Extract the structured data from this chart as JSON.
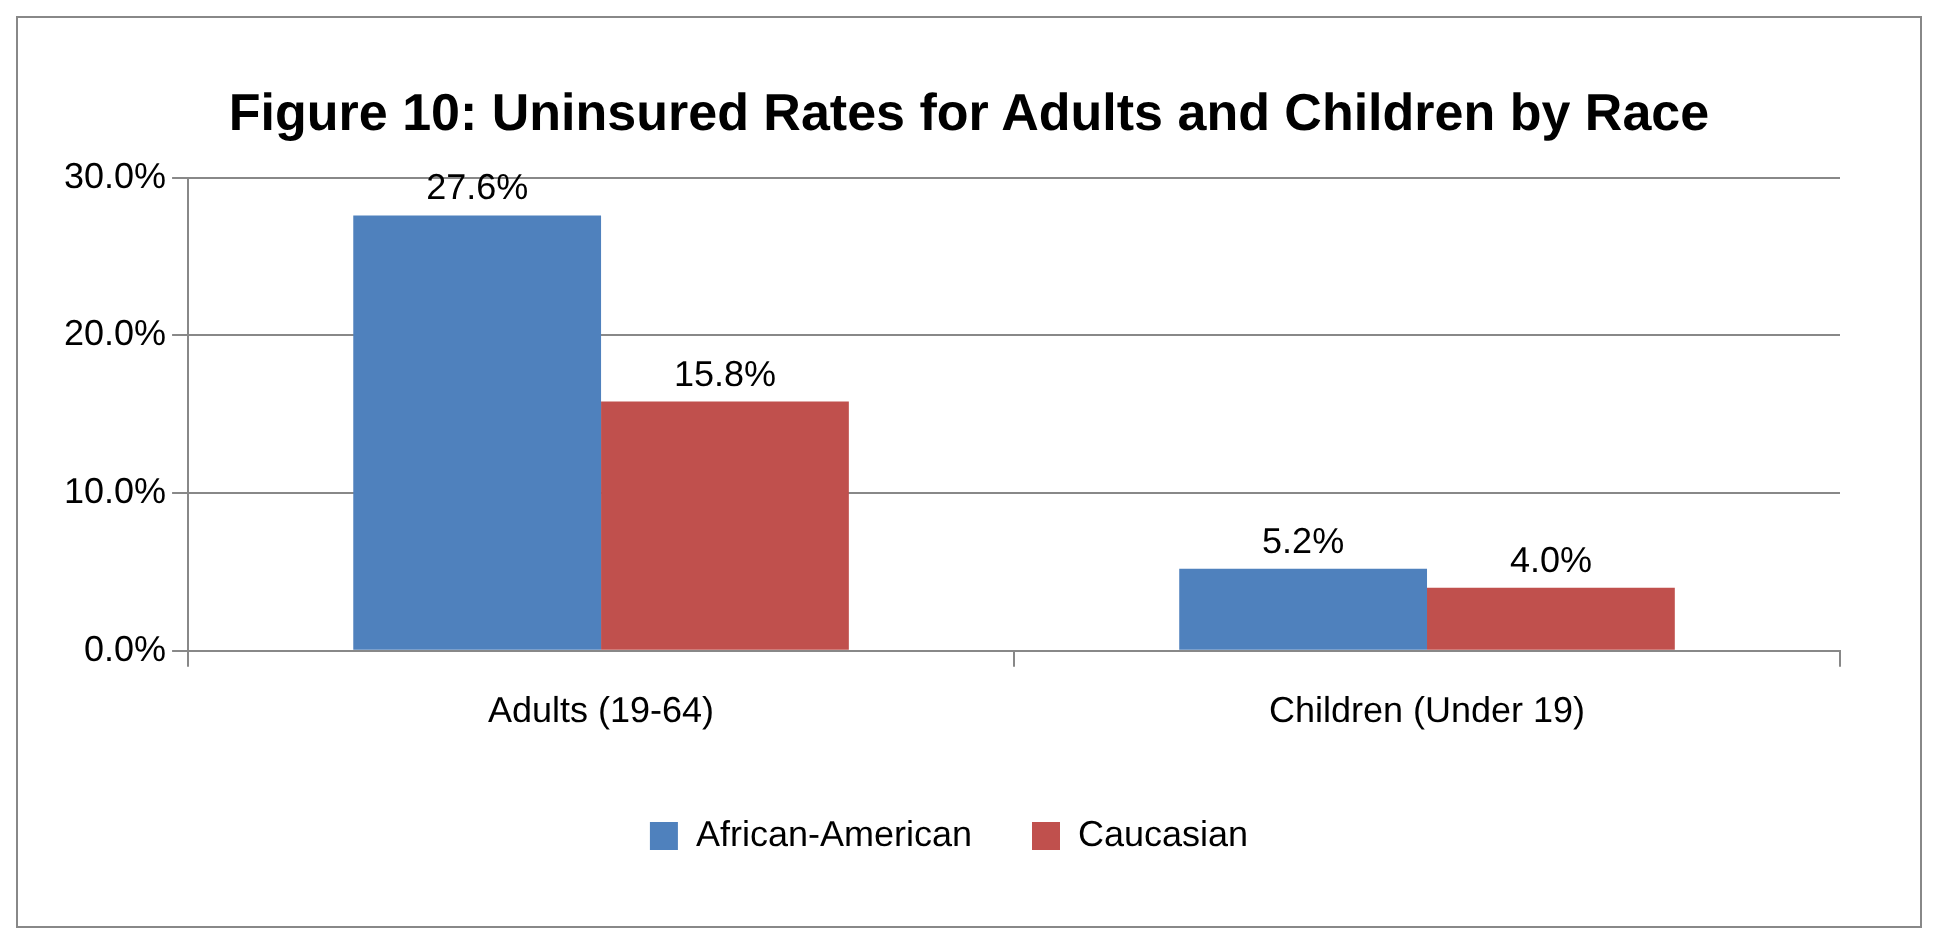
{
  "chart_data": {
    "type": "bar",
    "title": "Figure 10: Uninsured Rates for Adults and Children by Race",
    "categories": [
      "Adults (19-64)",
      "Children (Under 19)"
    ],
    "series": [
      {
        "name": "African-American",
        "color": "#4f81bd",
        "values": [
          27.6,
          5.2
        ],
        "value_labels": [
          "27.6%",
          "5.2%"
        ]
      },
      {
        "name": "Caucasian",
        "color": "#c0504d",
        "values": [
          15.8,
          4.0
        ],
        "value_labels": [
          "15.8%",
          "4.0%"
        ]
      }
    ],
    "ylim": [
      0,
      30
    ],
    "yticks": [
      {
        "value": 0,
        "label": "0.0%"
      },
      {
        "value": 10,
        "label": "10.0%"
      },
      {
        "value": 20,
        "label": "20.0%"
      },
      {
        "value": 30,
        "label": "30.0%"
      }
    ],
    "grid": "y",
    "legend": "bottom"
  }
}
